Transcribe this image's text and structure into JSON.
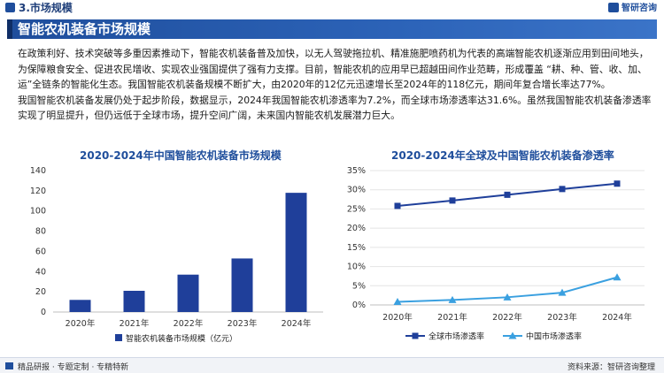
{
  "header": {
    "section": "3.市场规模",
    "brand": "智研咨询"
  },
  "banner": {
    "title": "智能农机装备市场规模"
  },
  "paragraphs": [
    "在政策利好、技术突破等多重因素推动下，智能农机装备普及加快，以无人驾驶拖拉机、精准施肥喷药机为代表的高端智能农机逐渐应用到田间地头，为保障粮食安全、促进农民增收、实现农业强国提供了强有力支撑。目前，智能农机的应用早已超越田间作业范畴，形成覆盖  “耕、种、管、收、加、运”全链条的智能化生态。我国智能农机装备规模不断扩大，由2020年的12亿元迅速增长至2024年的118亿元，期间年复合增长率达77%。",
    "我国智能农机装备发展仍处于起步阶段，数据显示，2024年我国智能农机渗透率为7.2%，而全球市场渗透率达31.6%。虽然我国智能农机装备渗透率实现了明显提升，但仍远低于全球市场，提升空间广阔，未来国内智能农机发展潜力巨大。"
  ],
  "chart_data": [
    {
      "type": "bar",
      "title": "2020-2024年中国智能农机装备市场规模",
      "categories": [
        "2020年",
        "2021年",
        "2022年",
        "2023年",
        "2024年"
      ],
      "series": [
        {
          "name": "智能农机装备市场规模（亿元）",
          "values": [
            12,
            21,
            37,
            53,
            118
          ],
          "color": "#1f3f9a"
        }
      ],
      "ylim": [
        0,
        140
      ],
      "yticks": [
        0,
        20,
        40,
        60,
        80,
        100,
        120,
        140
      ],
      "grid": false,
      "legend": "bottom"
    },
    {
      "type": "line",
      "title": "2020-2024年全球及中国智能农机装备渗透率",
      "categories": [
        "2020年",
        "2021年",
        "2022年",
        "2023年",
        "2024年"
      ],
      "series": [
        {
          "name": "全球市场渗透率",
          "values": [
            25.8,
            27.2,
            28.7,
            30.2,
            31.6
          ],
          "color": "#1f3f9a",
          "marker": "square"
        },
        {
          "name": "中国市场渗透率",
          "values": [
            0.8,
            1.3,
            2.0,
            3.2,
            7.2
          ],
          "color": "#3aa0e0",
          "marker": "triangle"
        }
      ],
      "ylim": [
        0,
        35
      ],
      "yticks": [
        "0%",
        "5%",
        "10%",
        "15%",
        "20%",
        "25%",
        "30%",
        "35%"
      ],
      "grid": true,
      "legend": "bottom"
    }
  ],
  "footer": {
    "left": "精品研报 · 专题定制 · 专精特新",
    "right": "资料来源：智研咨询整理"
  }
}
